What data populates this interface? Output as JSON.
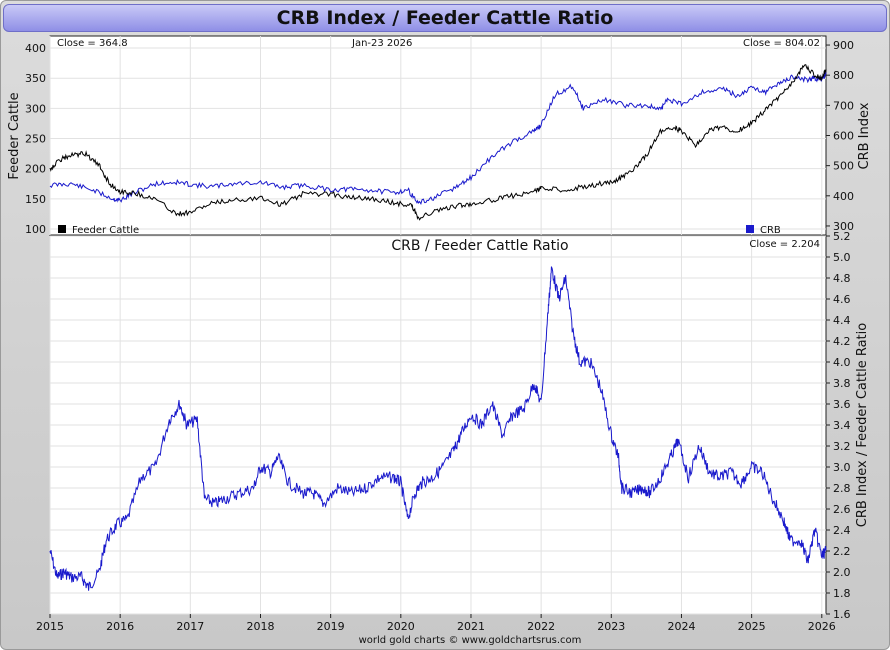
{
  "page_title": "CRB Index / Feeder Cattle Ratio",
  "footer_credit": "world gold charts © www.goldchartsrus.com",
  "chart_data": [
    {
      "type": "line",
      "date_label": "Jan-23  2026",
      "left_close": "Close = 364.8",
      "right_close": "Close = 804.02",
      "ylabel_left": "Feeder Cattle",
      "ylabel_right": "CRB Index",
      "ylim_left": [
        90,
        420
      ],
      "ylim_right": [
        270,
        930
      ],
      "yticks_left": [
        "400",
        "350",
        "300",
        "250",
        "200",
        "150",
        "100"
      ],
      "yticks_right": [
        "900",
        "800",
        "700",
        "600",
        "500",
        "400",
        "300"
      ],
      "legend": [
        "Feeder Cattle",
        "CRB"
      ],
      "grid": true,
      "colors": {
        "feeder": "#000000",
        "crb": "#1a1acc"
      },
      "series": [
        {
          "name": "Feeder Cattle",
          "axis": "left",
          "x": [
            2015.0,
            2015.15,
            2015.3,
            2015.5,
            2015.7,
            2015.85,
            2016.0,
            2016.2,
            2016.5,
            2016.8,
            2017.0,
            2017.3,
            2017.6,
            2018.0,
            2018.3,
            2018.6,
            2019.0,
            2019.3,
            2019.6,
            2019.9,
            2020.15,
            2020.25,
            2020.5,
            2020.8,
            2021.0,
            2021.3,
            2021.6,
            2021.9,
            2022.0,
            2022.3,
            2022.6,
            2022.9,
            2023.1,
            2023.3,
            2023.5,
            2023.7,
            2023.9,
            2024.0,
            2024.2,
            2024.4,
            2024.6,
            2024.8,
            2025.0,
            2025.2,
            2025.4,
            2025.6,
            2025.75,
            2025.9,
            2026.0,
            2026.06
          ],
          "y": [
            200,
            215,
            222,
            225,
            205,
            175,
            162,
            160,
            150,
            125,
            128,
            142,
            148,
            152,
            140,
            158,
            158,
            152,
            150,
            143,
            140,
            118,
            130,
            138,
            142,
            148,
            155,
            162,
            168,
            164,
            170,
            176,
            182,
            198,
            222,
            262,
            268,
            262,
            238,
            265,
            268,
            262,
            275,
            298,
            320,
            345,
            372,
            355,
            350,
            365
          ]
        },
        {
          "name": "CRB",
          "axis": "right",
          "x": [
            2015.0,
            2015.3,
            2015.6,
            2015.9,
            2016.0,
            2016.2,
            2016.5,
            2016.8,
            2017.0,
            2017.3,
            2017.6,
            2018.0,
            2018.3,
            2018.6,
            2019.0,
            2019.3,
            2019.6,
            2019.9,
            2020.1,
            2020.25,
            2020.5,
            2020.8,
            2021.0,
            2021.3,
            2021.6,
            2021.9,
            2022.0,
            2022.2,
            2022.45,
            2022.6,
            2022.9,
            2023.2,
            2023.5,
            2023.7,
            2023.8,
            2024.0,
            2024.3,
            2024.6,
            2024.8,
            2025.0,
            2025.2,
            2025.4,
            2025.6,
            2025.8,
            2025.9,
            2026.0,
            2026.06
          ],
          "y": [
            435,
            440,
            420,
            390,
            385,
            410,
            440,
            445,
            438,
            430,
            440,
            445,
            428,
            435,
            420,
            422,
            418,
            410,
            420,
            375,
            395,
            430,
            460,
            530,
            580,
            615,
            635,
            735,
            765,
            690,
            720,
            700,
            700,
            685,
            720,
            705,
            745,
            755,
            730,
            760,
            745,
            775,
            795,
            785,
            790,
            785,
            804
          ]
        }
      ]
    },
    {
      "type": "line",
      "title": "CRB  /  Feeder Cattle Ratio",
      "close": "Close = 2.204",
      "ylabel_right": "CRB Index / Feeder Cattle Ratio",
      "ylim": [
        1.6,
        5.2
      ],
      "yticks": [
        "5.2",
        "5.0",
        "4.8",
        "4.6",
        "4.4",
        "4.2",
        "4.0",
        "3.8",
        "3.6",
        "3.4",
        "3.2",
        "3.0",
        "2.8",
        "2.6",
        "2.4",
        "2.2",
        "2.0",
        "1.8",
        "1.6"
      ],
      "xticks": [
        "2015",
        "2016",
        "2017",
        "2018",
        "2019",
        "2020",
        "2021",
        "2022",
        "2023",
        "2024",
        "2025",
        "2026"
      ],
      "grid": true,
      "series": [
        {
          "name": "",
          "color": "#1a1acc",
          "x": [
            2015.0,
            2015.1,
            2015.2,
            2015.3,
            2015.45,
            2015.55,
            2015.7,
            2015.8,
            2015.95,
            2016.1,
            2016.3,
            2016.5,
            2016.7,
            2016.85,
            2016.95,
            2017.1,
            2017.2,
            2017.35,
            2017.5,
            2017.7,
            2017.9,
            2018.0,
            2018.15,
            2018.25,
            2018.4,
            2018.6,
            2018.75,
            2018.9,
            2019.1,
            2019.3,
            2019.5,
            2019.7,
            2019.9,
            2020.0,
            2020.1,
            2020.2,
            2020.3,
            2020.45,
            2020.6,
            2020.75,
            2020.85,
            2021.0,
            2021.15,
            2021.3,
            2021.45,
            2021.6,
            2021.75,
            2021.9,
            2022.0,
            2022.1,
            2022.15,
            2022.25,
            2022.35,
            2022.45,
            2022.55,
            2022.7,
            2022.85,
            2023.0,
            2023.1,
            2023.15,
            2023.3,
            2023.45,
            2023.55,
            2023.7,
            2023.85,
            2023.95,
            2024.1,
            2024.25,
            2024.4,
            2024.55,
            2024.7,
            2024.85,
            2025.0,
            2025.15,
            2025.3,
            2025.45,
            2025.55,
            2025.7,
            2025.8,
            2025.9,
            2026.0,
            2026.06
          ],
          "y": [
            2.2,
            1.95,
            2.0,
            1.95,
            1.95,
            1.85,
            2.0,
            2.3,
            2.45,
            2.5,
            2.9,
            3.0,
            3.45,
            3.6,
            3.4,
            3.45,
            2.7,
            2.65,
            2.7,
            2.75,
            2.8,
            3.0,
            2.95,
            3.1,
            2.85,
            2.75,
            2.75,
            2.65,
            2.8,
            2.75,
            2.8,
            2.9,
            2.9,
            2.85,
            2.5,
            2.75,
            2.85,
            2.9,
            3.0,
            3.15,
            3.3,
            3.5,
            3.4,
            3.6,
            3.3,
            3.5,
            3.55,
            3.8,
            3.6,
            4.5,
            4.9,
            4.6,
            4.8,
            4.3,
            4.0,
            4.0,
            3.75,
            3.3,
            3.1,
            2.8,
            2.75,
            2.8,
            2.75,
            2.9,
            3.1,
            3.25,
            2.9,
            3.2,
            2.95,
            2.9,
            2.95,
            2.85,
            3.0,
            2.95,
            2.7,
            2.5,
            2.3,
            2.3,
            2.1,
            2.4,
            2.15,
            2.204
          ]
        }
      ]
    }
  ]
}
